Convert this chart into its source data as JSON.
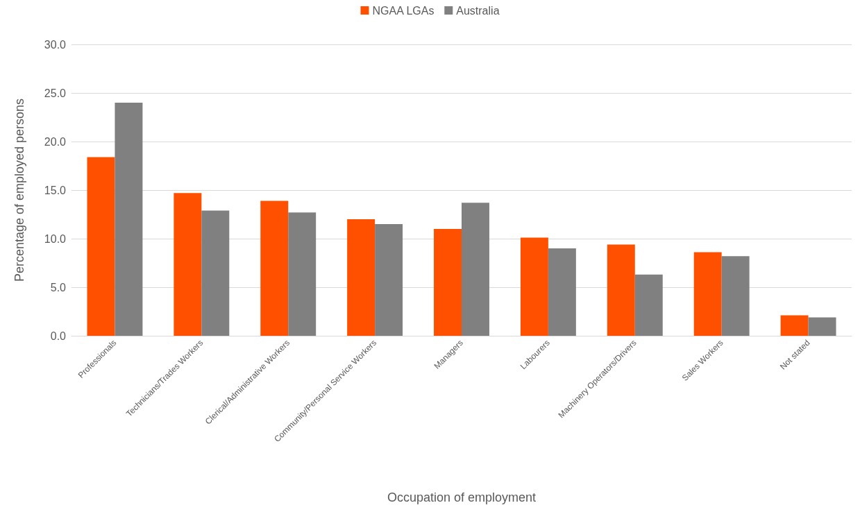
{
  "chart_data": {
    "type": "bar",
    "xlabel": "Occupation of employment",
    "ylabel": "Percentage of employed persons",
    "categories": [
      "Professionals",
      "Technicians/Trades Workers",
      "Clerical/Administrative Workers",
      "Community/Personal Service Workers",
      "Managers",
      "Labourers",
      "Machinery Operators/Drivers",
      "Sales Workers",
      "Not stated"
    ],
    "series": [
      {
        "name": "NGAA LGAs",
        "color": "#ff5000",
        "values": [
          18.4,
          14.7,
          13.9,
          12.0,
          11.0,
          10.1,
          9.4,
          8.6,
          2.1
        ]
      },
      {
        "name": "Australia",
        "color": "#808080",
        "values": [
          24.0,
          12.9,
          12.7,
          11.5,
          13.7,
          9.0,
          6.3,
          8.2,
          1.9
        ]
      }
    ],
    "ylim": [
      0,
      30
    ],
    "yticks": [
      {
        "value": 0,
        "label": "0.0"
      },
      {
        "value": 5,
        "label": "5.0"
      },
      {
        "value": 10,
        "label": "10.0"
      },
      {
        "value": 15,
        "label": "15.0"
      },
      {
        "value": 20,
        "label": "20.0"
      },
      {
        "value": 25,
        "label": "25.0"
      },
      {
        "value": 30,
        "label": "30.0"
      }
    ],
    "grid": "y",
    "legend": "top"
  }
}
